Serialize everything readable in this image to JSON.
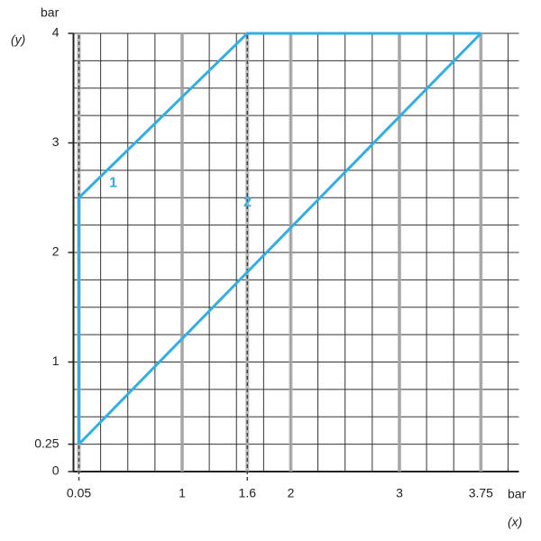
{
  "chart_data": {
    "type": "line",
    "x_label_top": "(y)",
    "y_unit": "bar",
    "x_unit": "bar",
    "x_label_bottom": "(x)",
    "xlim": [
      0,
      4.1
    ],
    "ylim": [
      0,
      4
    ],
    "xticks": [
      0.05,
      1,
      1.6,
      2,
      3,
      3.75
    ],
    "yticks": [
      0,
      0.25,
      1,
      2,
      3,
      4
    ],
    "xgrid": [
      0,
      0.25,
      0.5,
      0.75,
      1,
      1.25,
      1.5,
      1.75,
      2,
      2.25,
      2.5,
      2.75,
      3,
      3.25,
      3.5,
      3.75,
      4
    ],
    "ygrid": [
      0.25,
      0.5,
      0.75,
      1,
      1.25,
      1.5,
      1.75,
      2,
      2.25,
      2.5,
      2.75,
      3,
      3.25,
      3.5,
      3.75,
      4
    ],
    "series": [
      {
        "name": "1",
        "color": "#33aee3",
        "x": [
          0.05,
          0.05,
          1.6,
          3.75
        ],
        "values": [
          0.25,
          2.5,
          4,
          4
        ]
      },
      {
        "name": "2",
        "color": "#33aee3",
        "x": [
          0.05,
          3.75
        ],
        "values": [
          0.25,
          4
        ]
      }
    ],
    "ref_x": [
      0.05,
      1.6
    ]
  }
}
